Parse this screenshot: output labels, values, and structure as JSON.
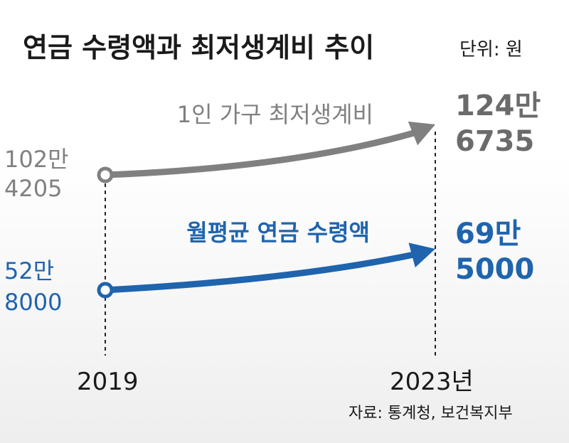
{
  "title": "연금 수령액과 최저생계비 추이",
  "unit_label": "단위: 원",
  "source": "자료: 통계청, 보건복지부",
  "colors": {
    "gray": "#808080",
    "blue": "#1f64ad",
    "text": "#1a1a1a",
    "value_gray": "#6b6b6b",
    "value_blue": "#1f64ad"
  },
  "chart_data": {
    "type": "line",
    "x": [
      "2019",
      "2023년"
    ],
    "series": [
      {
        "name": "1인 가구 최저생계비",
        "values": [
          1024205,
          1246735
        ],
        "start_label": [
          "102만",
          "4205"
        ],
        "end_label": [
          "124만",
          "6735"
        ],
        "color": "#808080"
      },
      {
        "name": "월평균 연금 수령액",
        "values": [
          528000,
          695000
        ],
        "start_label": [
          "52만",
          "8000"
        ],
        "end_label": [
          "69만",
          "5000"
        ],
        "color": "#1f64ad"
      }
    ]
  }
}
